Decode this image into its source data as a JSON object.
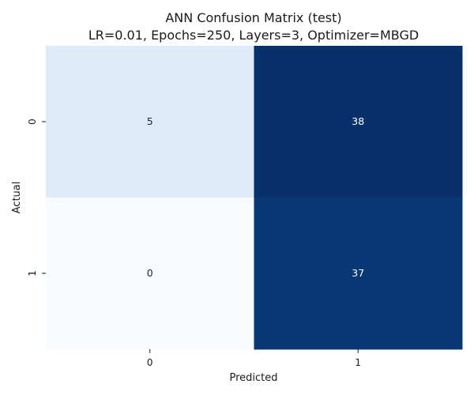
{
  "chart_data": {
    "type": "heatmap",
    "title": "ANN Confusion Matrix (test)",
    "subtitle": "LR=0.01, Epochs=250, Layers=3, Optimizer=MBGD",
    "xlabel": "Predicted",
    "ylabel": "Actual",
    "x_categories": [
      "0",
      "1"
    ],
    "y_categories": [
      "0",
      "1"
    ],
    "values": [
      [
        5,
        38
      ],
      [
        0,
        37
      ]
    ],
    "colormap": "Blues",
    "colorbar": false,
    "grid": false
  }
}
